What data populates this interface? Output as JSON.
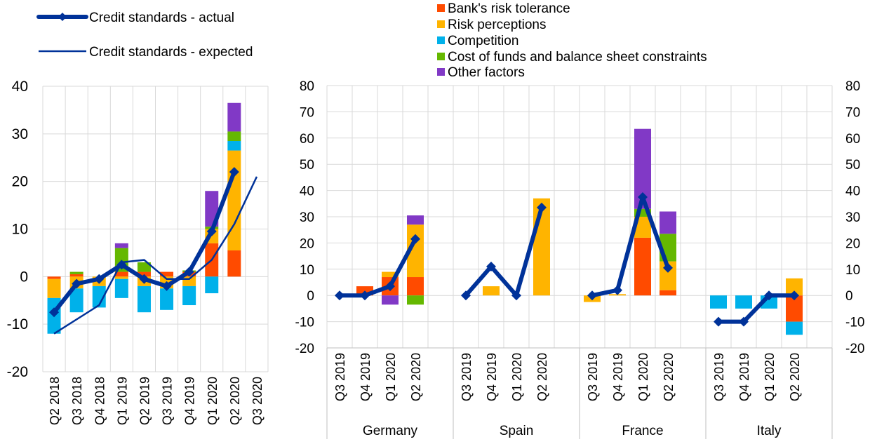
{
  "legend": {
    "actual_label": "Credit standards - actual",
    "expected_label": "Credit standards - expected",
    "factors": [
      {
        "key": "risk_tolerance",
        "label": "Bank's risk tolerance",
        "color": "#FF4B00"
      },
      {
        "key": "risk_perceptions",
        "label": "Risk perceptions",
        "color": "#FFB400"
      },
      {
        "key": "competition",
        "label": "Competition",
        "color": "#00B1EA"
      },
      {
        "key": "cost_of_funds",
        "label": "Cost of funds and balance sheet constraints",
        "color": "#65B800"
      },
      {
        "key": "other",
        "label": "Other factors",
        "color": "#8139C6"
      }
    ]
  },
  "colors": {
    "line": "#003299",
    "grid": "#D9D9D9",
    "axis": "#BFBFBF"
  },
  "chart_data": [
    {
      "type": "bar",
      "stacked": true,
      "title": "",
      "xlabel": "",
      "ylabel": "",
      "ylim": [
        -20,
        40
      ],
      "yticks": [
        -20,
        -10,
        0,
        10,
        20,
        30,
        40
      ],
      "grid": true,
      "categories": [
        "Q2 2018",
        "Q3 2018",
        "Q4 2018",
        "Q1 2019",
        "Q2 2019",
        "Q3 2019",
        "Q4 2019",
        "Q1 2020",
        "Q2 2020",
        "Q3 2020"
      ],
      "series": [
        {
          "name": "Bank's risk tolerance",
          "values": [
            -0.5,
            0.5,
            0,
            1,
            1,
            1,
            1,
            7,
            5.5,
            null
          ]
        },
        {
          "name": "Risk perceptions",
          "values": [
            -4,
            -2.5,
            -2,
            -0.5,
            -2,
            -2.5,
            -2,
            3,
            21,
            null
          ]
        },
        {
          "name": "Competition",
          "values": [
            -7.5,
            -5,
            -4.5,
            -4,
            -5.5,
            -4.5,
            -4,
            -3.5,
            2,
            null
          ]
        },
        {
          "name": "Cost of funds and balance sheet constraints",
          "values": [
            0,
            0.5,
            0,
            5,
            2,
            0,
            0.3,
            0.5,
            2,
            null
          ]
        },
        {
          "name": "Other factors",
          "values": [
            0,
            0,
            0,
            1,
            0,
            0,
            0,
            7.5,
            6,
            null
          ]
        },
        {
          "name": "Credit standards - actual",
          "type": "line",
          "values": [
            -7.5,
            -1.5,
            -0.5,
            2.5,
            -0.5,
            -2,
            1,
            9.5,
            22,
            null
          ]
        },
        {
          "name": "Credit standards - expected",
          "type": "line",
          "values": [
            -12,
            null,
            -6,
            3,
            3.5,
            -0.5,
            -0.5,
            3.5,
            11,
            21
          ]
        }
      ]
    },
    {
      "type": "bar",
      "stacked": true,
      "title": "",
      "xlabel": "",
      "ylabel": "",
      "ylim": [
        -20,
        80
      ],
      "yticks": [
        -20,
        -10,
        0,
        10,
        20,
        30,
        40,
        50,
        60,
        70,
        80
      ],
      "grid": true,
      "axis_position": "both",
      "groups": [
        {
          "name": "Germany",
          "categories": [
            "Q3 2019",
            "Q4 2019",
            "Q1 2020",
            "Q2 2020"
          ],
          "series": [
            {
              "name": "Bank's risk tolerance",
              "values": [
                0,
                3.5,
                7,
                7
              ]
            },
            {
              "name": "Risk perceptions",
              "values": [
                0,
                0,
                2,
                20
              ]
            },
            {
              "name": "Competition",
              "values": [
                0,
                0,
                0,
                0
              ]
            },
            {
              "name": "Cost of funds and balance sheet constraints",
              "values": [
                0,
                0,
                0,
                -3.5
              ]
            },
            {
              "name": "Other factors",
              "values": [
                0,
                0,
                -3.5,
                3.5
              ]
            }
          ],
          "line": [
            0,
            0,
            3.5,
            21.5
          ]
        },
        {
          "name": "Spain",
          "categories": [
            "Q3 2019",
            "Q4 2019",
            "Q1 2020",
            "Q2 2020"
          ],
          "series": [
            {
              "name": "Bank's risk tolerance",
              "values": [
                0,
                0,
                0,
                0
              ]
            },
            {
              "name": "Risk perceptions",
              "values": [
                0,
                3.5,
                0,
                37
              ]
            },
            {
              "name": "Competition",
              "values": [
                0,
                0,
                0,
                0
              ]
            },
            {
              "name": "Cost of funds and balance sheet constraints",
              "values": [
                0,
                0,
                0,
                0
              ]
            },
            {
              "name": "Other factors",
              "values": [
                0,
                0,
                0,
                0
              ]
            }
          ],
          "line": [
            0,
            11,
            0,
            33.5
          ]
        },
        {
          "name": "France",
          "categories": [
            "Q3 2019",
            "Q4 2019",
            "Q1 2020",
            "Q2 2020"
          ],
          "series": [
            {
              "name": "Bank's risk tolerance",
              "values": [
                0,
                0,
                22,
                2
              ]
            },
            {
              "name": "Risk perceptions",
              "values": [
                -2.5,
                0.5,
                8,
                11
              ]
            },
            {
              "name": "Competition",
              "values": [
                0,
                0,
                0,
                0
              ]
            },
            {
              "name": "Cost of funds and balance sheet constraints",
              "values": [
                0,
                0,
                3,
                10.5
              ]
            },
            {
              "name": "Other factors",
              "values": [
                0,
                0,
                30.5,
                8.5
              ]
            }
          ],
          "line": [
            0,
            2,
            37.5,
            10.5
          ]
        },
        {
          "name": "Italy",
          "categories": [
            "Q3 2019",
            "Q4 2019",
            "Q1 2020",
            "Q2 2020"
          ],
          "series": [
            {
              "name": "Bank's risk tolerance",
              "values": [
                0,
                0,
                0,
                -10
              ]
            },
            {
              "name": "Risk perceptions",
              "values": [
                0,
                0,
                0,
                6.5
              ]
            },
            {
              "name": "Competition",
              "values": [
                -5,
                -5,
                -5,
                -5
              ]
            },
            {
              "name": "Cost of funds and balance sheet constraints",
              "values": [
                0,
                0,
                0,
                0
              ]
            },
            {
              "name": "Other factors",
              "values": [
                0,
                0,
                0,
                0
              ]
            }
          ],
          "line": [
            -10,
            -10,
            0,
            0
          ]
        }
      ]
    }
  ]
}
